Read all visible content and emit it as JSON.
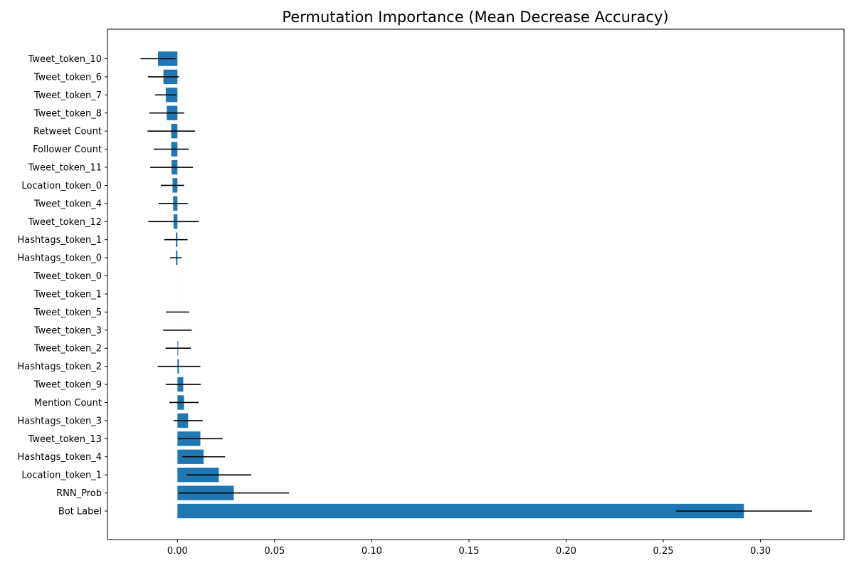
{
  "chart_data": {
    "type": "bar",
    "orientation": "horizontal",
    "title": "Permutation Importance (Mean Decrease Accuracy)",
    "xlabel": "",
    "ylabel": "",
    "xlim": [
      -0.036,
      0.343
    ],
    "xticks": [
      0.0,
      0.05,
      0.1,
      0.15,
      0.2,
      0.25,
      0.3
    ],
    "xtick_labels": [
      "0.00",
      "0.05",
      "0.10",
      "0.15",
      "0.20",
      "0.25",
      "0.30"
    ],
    "grid": false,
    "legend": "none",
    "bar_color": "#1f77b4",
    "error_color": "#000000",
    "categories": [
      "Tweet_token_10",
      "Tweet_token_6",
      "Tweet_token_7",
      "Tweet_token_8",
      "Retweet Count",
      "Follower Count",
      "Tweet_token_11",
      "Location_token_0",
      "Tweet_token_4",
      "Tweet_token_12",
      "Hashtags_token_1",
      "Hashtags_token_0",
      "Tweet_token_0",
      "Tweet_token_1",
      "Tweet_token_5",
      "Tweet_token_3",
      "Tweet_token_2",
      "Hashtags_token_2",
      "Tweet_token_9",
      "Mention Count",
      "Hashtags_token_3",
      "Tweet_token_13",
      "Hashtags_token_4",
      "Location_token_1",
      "RNN_Prob",
      "Bot Label"
    ],
    "values": [
      -0.01,
      -0.0072,
      -0.006,
      -0.0055,
      -0.0032,
      -0.0032,
      -0.003,
      -0.0025,
      -0.0022,
      -0.002,
      -0.0008,
      -0.0008,
      0.0,
      0.0,
      0.0,
      0.0,
      0.0004,
      0.0008,
      0.003,
      0.0034,
      0.0055,
      0.0118,
      0.0135,
      0.0213,
      0.029,
      0.2915
    ],
    "errors": [
      0.009,
      0.008,
      0.0055,
      0.009,
      0.0122,
      0.009,
      0.011,
      0.006,
      0.0075,
      0.013,
      0.006,
      0.003,
      0.0,
      0.0,
      0.006,
      0.0074,
      0.0065,
      0.011,
      0.009,
      0.0075,
      0.0075,
      0.0115,
      0.011,
      0.0167,
      0.0285,
      0.035
    ]
  }
}
